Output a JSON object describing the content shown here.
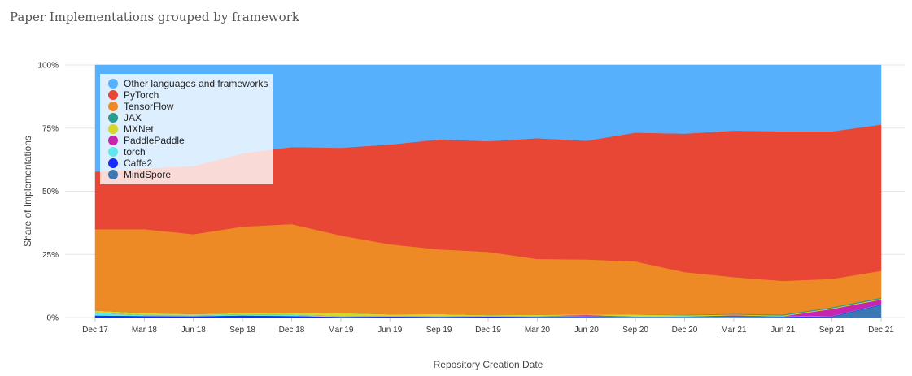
{
  "chart_data": {
    "type": "area",
    "stacked": "percent",
    "title": "Paper Implementations grouped by framework",
    "xlabel": "Repository Creation Date",
    "ylabel": "Share of Implementations",
    "categories": [
      "Dec 17",
      "Mar 18",
      "Jun 18",
      "Sep 18",
      "Dec 18",
      "Mar 19",
      "Jun 19",
      "Sep 19",
      "Dec 19",
      "Mar 20",
      "Jun 20",
      "Sep 20",
      "Dec 20",
      "Mar 21",
      "Jun 21",
      "Sep 21",
      "Dec 21"
    ],
    "y_ticks": [
      "0%",
      "25%",
      "50%",
      "75%",
      "100%"
    ],
    "ylim": [
      0,
      100
    ],
    "grid": true,
    "legend_position": "top-left",
    "series": [
      {
        "name": "MindSpore",
        "color": "#3d78b3",
        "values": [
          0,
          0,
          0,
          0,
          0,
          0,
          0,
          0,
          0,
          0,
          0,
          0,
          0,
          0,
          0,
          0.3,
          5
        ]
      },
      {
        "name": "Caffe2",
        "color": "#1a2bff",
        "values": [
          0.8,
          0.6,
          0.5,
          0.8,
          0.6,
          0.3,
          0.4,
          0.3,
          0.4,
          0.3,
          0.3,
          0.2,
          0.2,
          0.2,
          0.3,
          0.2,
          0.2
        ]
      },
      {
        "name": "torch",
        "color": "#5ee8ee",
        "values": [
          1.2,
          0.4,
          0.4,
          0.4,
          0.5,
          0.3,
          0.3,
          0.3,
          0.3,
          0.3,
          0.2,
          0.2,
          0.2,
          0.2,
          0.2,
          0.1,
          0.1
        ]
      },
      {
        "name": "PaddlePaddle",
        "color": "#c724b1",
        "values": [
          0,
          0,
          0,
          0,
          0,
          0,
          0,
          0,
          0,
          0,
          0.5,
          0,
          0,
          0.5,
          0,
          2.8,
          1.8
        ]
      },
      {
        "name": "MXNet",
        "color": "#d6d62b",
        "values": [
          0.8,
          0.8,
          0.5,
          0.6,
          0.6,
          1.2,
          0.6,
          0.8,
          0.3,
          0.5,
          0.3,
          0.8,
          0.5,
          0.3,
          0.3,
          0.3,
          0.3
        ]
      },
      {
        "name": "JAX",
        "color": "#2e9b8f",
        "values": [
          0,
          0,
          0,
          0,
          0,
          0,
          0,
          0,
          0,
          0,
          0,
          0,
          0.2,
          0.3,
          0.4,
          0.4,
          0.5
        ]
      },
      {
        "name": "TensorFlow",
        "color": "#ee8a26",
        "values": [
          32.2,
          33.2,
          31.6,
          34.2,
          35.3,
          30.7,
          27.7,
          25.6,
          25.0,
          22.1,
          21.7,
          21.0,
          16.9,
          14.5,
          13.3,
          11.2,
          10.6
        ]
      },
      {
        "name": "PyTorch",
        "color": "#e74734",
        "values": [
          22.8,
          24.0,
          27.0,
          29.0,
          30.5,
          34.7,
          39.5,
          43.5,
          43.8,
          47.8,
          47.0,
          51.0,
          54.8,
          58.0,
          59.2,
          58.4,
          57.9
        ]
      },
      {
        "name": "Other languages and frameworks",
        "color": "#56b0fb",
        "values": [
          42.2,
          41.0,
          40.0,
          35.0,
          32.5,
          32.8,
          31.5,
          29.5,
          30.2,
          29.0,
          30.0,
          26.8,
          27.2,
          26.0,
          26.3,
          26.3,
          23.6
        ]
      }
    ]
  }
}
